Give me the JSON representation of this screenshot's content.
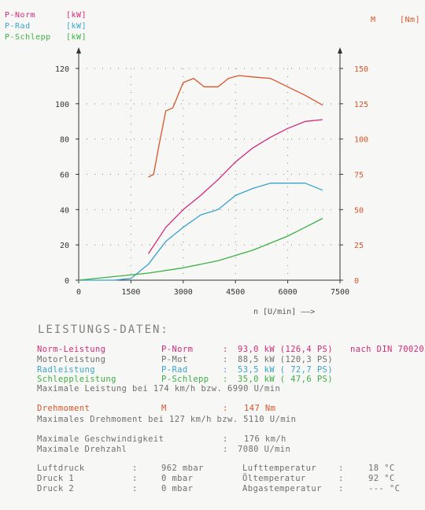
{
  "legend": {
    "p_norm": {
      "label": "P-Norm",
      "unit": "[kW]",
      "color": "#d6287a"
    },
    "p_rad": {
      "label": "P-Rad",
      "unit": "[kW]",
      "color": "#3aa3cc"
    },
    "p_schlepp": {
      "label": "P-Schlepp",
      "unit": "[kW]",
      "color": "#3cb043"
    },
    "torque": {
      "label": "M",
      "unit": "[Nm]",
      "color": "#d8552a"
    }
  },
  "chart_data": {
    "type": "line",
    "xlabel": "n [U/min] ——>",
    "xlim": [
      0,
      7500
    ],
    "xticks": [
      0,
      1500,
      3000,
      4500,
      6000,
      7500
    ],
    "ylim_left": [
      0,
      120
    ],
    "yticks_left": [
      0,
      20,
      40,
      60,
      80,
      100,
      120
    ],
    "ylim_right": [
      0,
      150
    ],
    "yticks_right": [
      0,
      25,
      50,
      75,
      100,
      125,
      150
    ],
    "grid": "dotted",
    "series": [
      {
        "name": "P-Norm",
        "axis": "left",
        "color": "#d6287a",
        "x": [
          2000,
          2500,
          3000,
          3500,
          4000,
          4500,
          5000,
          5500,
          6000,
          6500,
          7000
        ],
        "y": [
          15,
          30,
          40,
          48,
          57,
          67,
          75,
          81,
          86,
          90,
          91
        ]
      },
      {
        "name": "P-Rad",
        "axis": "left",
        "color": "#3aa3cc",
        "x": [
          0,
          1000,
          1500,
          2000,
          2500,
          3000,
          3500,
          4000,
          4500,
          5000,
          5500,
          6000,
          6500,
          7000
        ],
        "y": [
          0,
          0,
          1,
          9,
          22,
          30,
          37,
          40,
          48,
          52,
          55,
          55,
          55,
          51
        ]
      },
      {
        "name": "P-Schlepp",
        "axis": "left",
        "color": "#3cb043",
        "x": [
          0,
          1000,
          2000,
          3000,
          4000,
          5000,
          6000,
          7000
        ],
        "y": [
          0,
          2,
          4,
          7,
          11,
          17,
          25,
          35
        ]
      },
      {
        "name": "M",
        "axis": "right",
        "color": "#d8552a",
        "x": [
          2000,
          2150,
          2300,
          2500,
          2700,
          3000,
          3300,
          3600,
          4000,
          4300,
          4600,
          5000,
          5500,
          6000,
          6500,
          7000
        ],
        "y": [
          73,
          75,
          95,
          120,
          122,
          140,
          143,
          137,
          137,
          143,
          145,
          144,
          143,
          137,
          131,
          124
        ]
      }
    ]
  },
  "section_title": "LEISTUNGS-DATEN:",
  "rows": [
    {
      "label": "Norm-Leistung",
      "symbol": "P-Norm",
      "sep": ":",
      "value": "93,0 kW (126,4 PS)",
      "extra": "nach DIN 70020",
      "color": "#d6287a"
    },
    {
      "label": "Motorleistung",
      "symbol": "P-Mot",
      "sep": ":",
      "value": "88,5 kW (120,3 PS)",
      "extra": "",
      "color": "#6f6f6f"
    },
    {
      "label": "Radleistung",
      "symbol": "P-Rad",
      "sep": ":",
      "value": "53,5 kW ( 72,7 PS)",
      "extra": "",
      "color": "#3aa3cc"
    },
    {
      "label": "Schleppleistung",
      "symbol": "P-Schlepp",
      "sep": ":",
      "value": "35,0 kW ( 47,6 PS)",
      "extra": "",
      "color": "#3cb043"
    }
  ],
  "max_power": "Maximale Leistung bei 174 km/h bzw.  6990 U/min",
  "torque_row": {
    "label": "Drehmoment",
    "symbol": "M",
    "sep": ":",
    "value": "147 Nm"
  },
  "max_torque": "Maximales Drehmoment bei 127 km/h bzw.  5110 U/min",
  "speed": {
    "label": "Maximale Geschwindigkeit",
    "sep": ":",
    "value": "176 km/h"
  },
  "rpm": {
    "label": "Maximale Drehzahl",
    "sep": ":",
    "value": "7080 U/min"
  },
  "conditions": [
    {
      "label": "Luftdruck",
      "sep": ":",
      "value": "962 mbar",
      "label2": "Lufttemperatur",
      "sep2": ":",
      "value2": "18 °C"
    },
    {
      "label": "Druck 1",
      "sep": ":",
      "value": "0 mbar",
      "label2": "Öltemperatur",
      "sep2": ":",
      "value2": "92 °C"
    },
    {
      "label": "Druck 2",
      "sep": ":",
      "value": "0 mbar",
      "label2": "Abgastemperatur",
      "sep2": ":",
      "value2": "--- °C"
    }
  ]
}
